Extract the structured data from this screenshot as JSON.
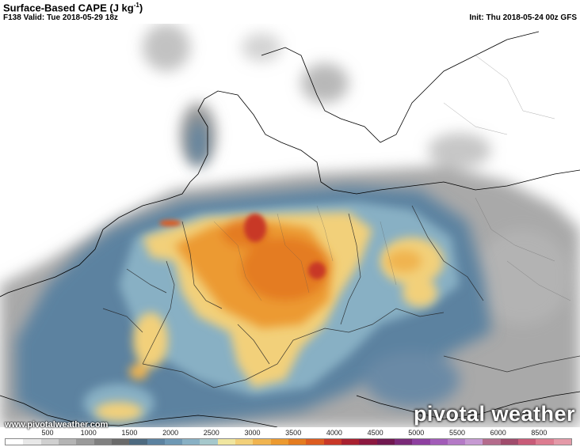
{
  "header": {
    "title": "Surface-Based CAPE (J kg",
    "title_sup": "-1",
    "title_close": ")",
    "valid": "F138 Valid: Tue 2018-05-29 18z",
    "init": "Init: Thu 2018-05-24 00z GFS"
  },
  "watermark": {
    "url": "www.pivotalweather.com",
    "brand": "pivotal weather"
  },
  "legend": {
    "ticks": [
      "500",
      "1000",
      "1500",
      "2000",
      "2500",
      "3000",
      "3500",
      "4000",
      "4500",
      "5000",
      "5500",
      "6000",
      "8500"
    ],
    "colors": [
      "#ffffff",
      "#e8e8e8",
      "#d0d0d0",
      "#b4b4b4",
      "#9a9a9a",
      "#808080",
      "#6a6a6a",
      "#4e6a80",
      "#5c82a0",
      "#6e98b4",
      "#88b0c4",
      "#a6c8cc",
      "#f0e6a0",
      "#f2d07a",
      "#f0b450",
      "#ec9a30",
      "#e47c20",
      "#dc5c20",
      "#c83828",
      "#a82030",
      "#8c1840",
      "#701850",
      "#7a2a78",
      "#8e40a0",
      "#a25cb8",
      "#b47ac6",
      "#c69ad2",
      "#b46c8c",
      "#a04c6c",
      "#c85c78",
      "#dc7c90",
      "#e49aa8"
    ]
  },
  "map": {
    "description_colors": {
      "land": "#ffffff",
      "sea": "#ffffff",
      "low_cape": "#8c8c8c",
      "mid_cape": "#5c82a0",
      "high_cape": "#f2d07a",
      "very_high_cape": "#e47c20",
      "extreme_cape": "#c83828"
    }
  }
}
